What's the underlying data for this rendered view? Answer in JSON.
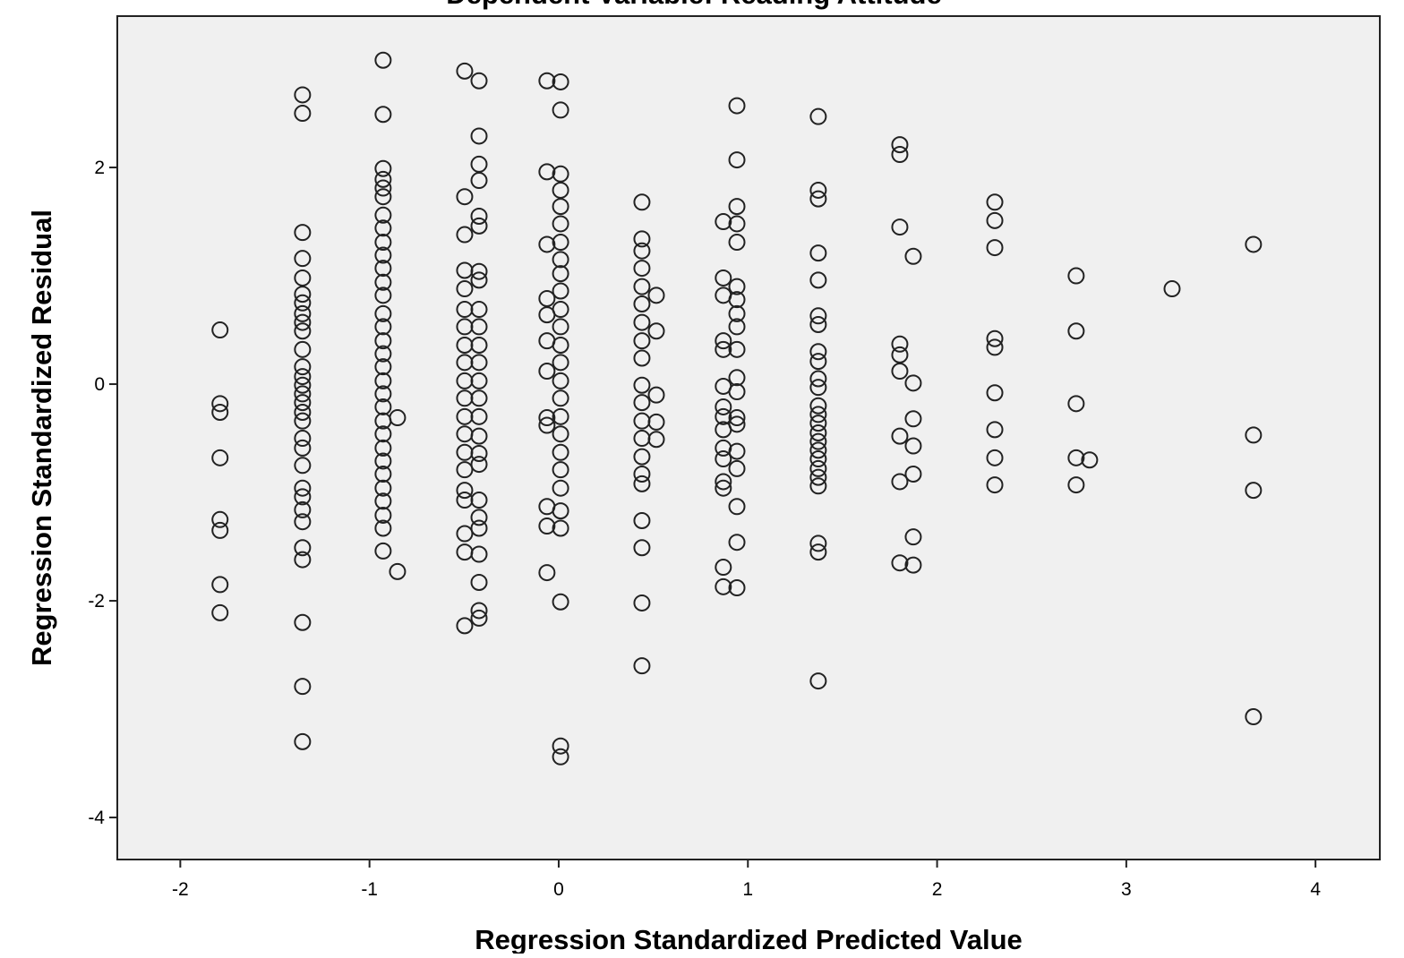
{
  "chart_data": {
    "type": "scatter",
    "title": "Dependent Variable: Reading Attitude",
    "x_label": "Regression Standardized Predicted Value",
    "y_label": "Regression Standardized Residual",
    "xlim": [
      -2.333,
      4.34
    ],
    "ylim": [
      -4.388,
      3.397
    ],
    "xticks": [
      -2,
      -1,
      0,
      1,
      2,
      3,
      4
    ],
    "yticks": [
      -4,
      -2,
      0,
      2
    ],
    "color": "#222222",
    "x": [
      -1.79,
      -1.79,
      -1.79,
      -1.79,
      -1.79,
      -1.79,
      -1.79,
      -1.79,
      -1.354,
      -1.354,
      -1.354,
      -1.354,
      -1.354,
      -1.354,
      -1.354,
      -1.354,
      -1.354,
      -1.354,
      -1.354,
      -1.354,
      -1.354,
      -1.354,
      -1.354,
      -1.354,
      -1.354,
      -1.354,
      -1.354,
      -1.354,
      -1.354,
      -1.354,
      -1.354,
      -1.354,
      -1.354,
      -1.354,
      -1.354,
      -1.354,
      -1.354,
      -1.354,
      -0.928,
      -0.928,
      -0.928,
      -0.928,
      -0.928,
      -0.928,
      -0.928,
      -0.928,
      -0.928,
      -0.928,
      -0.928,
      -0.928,
      -0.928,
      -0.928,
      -0.928,
      -0.928,
      -0.928,
      -0.928,
      -0.928,
      -0.928,
      -0.928,
      -0.928,
      -0.928,
      -0.928,
      -0.928,
      -0.928,
      -0.928,
      -0.928,
      -0.928,
      -0.928,
      -0.928,
      -0.852,
      -0.852,
      -0.497,
      -0.497,
      -0.497,
      -0.497,
      -0.497,
      -0.497,
      -0.497,
      -0.497,
      -0.497,
      -0.497,
      -0.497,
      -0.497,
      -0.497,
      -0.497,
      -0.497,
      -0.497,
      -0.497,
      -0.497,
      -0.497,
      -0.497,
      -0.421,
      -0.421,
      -0.421,
      -0.421,
      -0.421,
      -0.421,
      -0.421,
      -0.421,
      -0.421,
      -0.421,
      -0.421,
      -0.421,
      -0.421,
      -0.421,
      -0.421,
      -0.421,
      -0.421,
      -0.421,
      -0.421,
      -0.421,
      -0.421,
      -0.421,
      -0.421,
      -0.421,
      -0.421,
      -0.062,
      -0.062,
      -0.062,
      -0.062,
      -0.062,
      -0.062,
      -0.062,
      -0.062,
      -0.062,
      -0.062,
      -0.062,
      -0.062,
      0.01,
      0.01,
      0.01,
      0.01,
      0.01,
      0.01,
      0.01,
      0.01,
      0.01,
      0.01,
      0.01,
      0.01,
      0.01,
      0.01,
      0.01,
      0.01,
      0.01,
      0.01,
      0.01,
      0.01,
      0.01,
      0.01,
      0.01,
      0.01,
      0.01,
      0.01,
      0.44,
      0.44,
      0.44,
      0.44,
      0.44,
      0.44,
      0.44,
      0.44,
      0.44,
      0.44,
      0.44,
      0.44,
      0.44,
      0.44,
      0.44,
      0.44,
      0.44,
      0.44,
      0.44,
      0.44,
      0.516,
      0.516,
      0.516,
      0.516,
      0.516,
      0.87,
      0.87,
      0.87,
      0.87,
      0.87,
      0.87,
      0.87,
      0.87,
      0.87,
      0.87,
      0.87,
      0.87,
      0.87,
      0.87,
      0.87,
      0.942,
      0.942,
      0.942,
      0.942,
      0.942,
      0.942,
      0.942,
      0.942,
      0.942,
      0.942,
      0.942,
      0.942,
      0.942,
      0.942,
      0.942,
      0.942,
      0.942,
      0.942,
      0.942,
      1.372,
      1.372,
      1.372,
      1.372,
      1.372,
      1.372,
      1.372,
      1.372,
      1.372,
      1.372,
      1.372,
      1.372,
      1.372,
      1.372,
      1.372,
      1.372,
      1.372,
      1.372,
      1.372,
      1.372,
      1.372,
      1.372,
      1.372,
      1.372,
      1.803,
      1.803,
      1.803,
      1.803,
      1.803,
      1.803,
      1.803,
      1.803,
      1.803,
      1.874,
      1.874,
      1.874,
      1.874,
      1.874,
      1.874,
      1.874,
      2.305,
      2.305,
      2.305,
      2.305,
      2.305,
      2.305,
      2.305,
      2.305,
      2.305,
      2.735,
      2.735,
      2.735,
      2.735,
      2.735,
      2.806,
      3.242,
      3.672,
      3.672,
      3.672,
      3.672
    ],
    "y": [
      0.5,
      -0.18,
      -0.26,
      -0.68,
      -1.25,
      -1.35,
      -1.85,
      -2.11,
      2.67,
      2.5,
      1.4,
      1.16,
      0.98,
      0.83,
      0.75,
      0.65,
      0.57,
      0.49,
      0.32,
      0.16,
      0.07,
      -0.01,
      -0.09,
      -0.17,
      -0.26,
      -0.34,
      -0.5,
      -0.59,
      -0.75,
      -0.96,
      -1.04,
      -1.16,
      -1.27,
      -1.51,
      -1.62,
      -2.2,
      -2.79,
      -3.3,
      2.99,
      2.49,
      1.99,
      1.89,
      1.81,
      1.73,
      1.56,
      1.44,
      1.31,
      1.19,
      1.07,
      0.94,
      0.82,
      0.65,
      0.53,
      0.4,
      0.28,
      0.16,
      0.03,
      -0.09,
      -0.21,
      -0.34,
      -0.46,
      -0.59,
      -0.71,
      -0.83,
      -0.96,
      -1.08,
      -1.21,
      -1.33,
      -1.54,
      -0.31,
      -1.73,
      2.89,
      1.73,
      1.38,
      1.05,
      0.88,
      0.69,
      0.53,
      0.36,
      0.2,
      0.03,
      -0.13,
      -0.3,
      -0.46,
      -0.63,
      -0.79,
      -0.98,
      -1.07,
      -1.38,
      -1.55,
      -2.23,
      2.8,
      2.29,
      2.03,
      1.88,
      1.55,
      1.46,
      1.04,
      0.96,
      0.69,
      0.53,
      0.36,
      0.2,
      0.03,
      -0.13,
      -0.3,
      -0.48,
      -0.64,
      -0.74,
      -1.07,
      -1.23,
      -1.33,
      -1.57,
      -1.83,
      -2.09,
      -2.16,
      2.8,
      1.96,
      1.29,
      0.79,
      0.64,
      0.4,
      0.12,
      -0.31,
      -0.38,
      -1.13,
      -1.31,
      -1.74,
      2.79,
      2.53,
      1.94,
      1.79,
      1.64,
      1.48,
      1.31,
      1.15,
      1.02,
      0.86,
      0.69,
      0.53,
      0.36,
      0.2,
      0.03,
      -0.13,
      -0.3,
      -0.46,
      -0.63,
      -0.79,
      -0.96,
      -1.17,
      -1.33,
      -2.01,
      -3.34,
      -3.44,
      1.68,
      1.34,
      1.23,
      1.07,
      0.9,
      0.74,
      0.57,
      0.4,
      0.24,
      -0.01,
      -0.17,
      -0.34,
      -0.5,
      -0.67,
      -0.83,
      -0.92,
      -1.26,
      -1.51,
      -2.02,
      -2.6,
      0.82,
      0.49,
      -0.1,
      -0.35,
      -0.51,
      1.5,
      0.98,
      0.82,
      0.4,
      0.32,
      -0.02,
      -0.21,
      -0.3,
      -0.42,
      -0.59,
      -0.69,
      -0.9,
      -0.96,
      -1.69,
      -1.87,
      2.57,
      2.07,
      1.64,
      1.48,
      1.31,
      0.9,
      0.78,
      0.65,
      0.53,
      0.32,
      0.06,
      -0.07,
      -0.31,
      -0.37,
      -0.62,
      -0.78,
      -1.13,
      -1.46,
      -1.88,
      2.47,
      1.79,
      1.71,
      1.21,
      0.96,
      0.63,
      0.55,
      0.3,
      0.21,
      0.05,
      -0.03,
      -0.2,
      -0.28,
      -0.36,
      -0.45,
      -0.53,
      -0.61,
      -0.69,
      -0.78,
      -0.86,
      -0.94,
      -1.47,
      -1.55,
      -2.74,
      2.21,
      2.12,
      1.45,
      0.37,
      0.27,
      0.12,
      -0.48,
      -0.9,
      -1.65,
      1.18,
      0.01,
      -0.32,
      -0.57,
      -0.83,
      -1.41,
      -1.67,
      1.68,
      1.51,
      1.26,
      0.42,
      0.34,
      -0.08,
      -0.42,
      -0.68,
      -0.93,
      1.0,
      0.49,
      -0.18,
      -0.68,
      -0.93,
      -0.7,
      0.88,
      1.29,
      -0.47,
      -0.98,
      -3.07
    ]
  }
}
